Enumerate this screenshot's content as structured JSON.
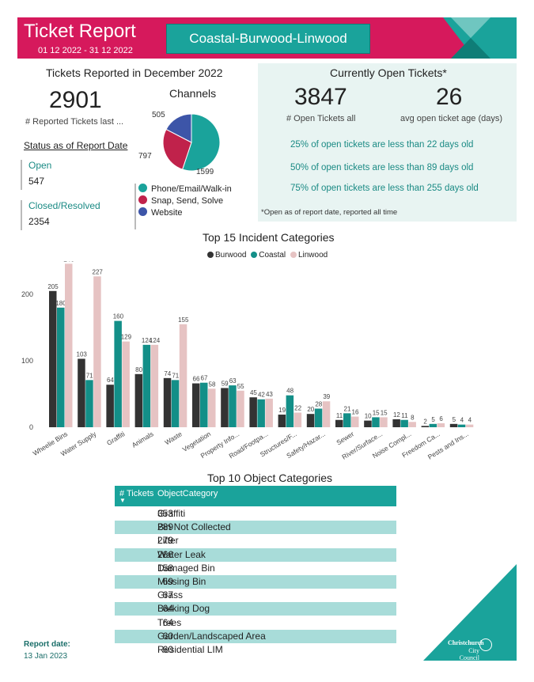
{
  "header": {
    "title": "Ticket Report",
    "dates": "01 12 2022 - 31 12 2022",
    "ward": "Coastal-Burwood-Linwood"
  },
  "reported": {
    "heading": "Tickets Reported in December 2022",
    "count": "2901",
    "count_label": "# Reported Tickets last ...",
    "status_heading": "Status as of Report Date",
    "open_label": "Open",
    "open_value": "547",
    "closed_label": "Closed/Resolved",
    "closed_value": "2354"
  },
  "channels": {
    "title": "Channels",
    "slices": [
      {
        "name": "Phone/Email/Walk-in",
        "value": 1599,
        "label": "1599",
        "color": "#1aa39b"
      },
      {
        "name": "Snap, Send, Solve",
        "value": 797,
        "label": "797",
        "color": "#c0224b"
      },
      {
        "name": "Website",
        "value": 505,
        "label": "505",
        "color": "#3d55a8"
      }
    ]
  },
  "open_tickets": {
    "heading": "Currently Open Tickets*",
    "count": "3847",
    "count_label": "# Open Tickets all",
    "age": "26",
    "age_label": "avg open ticket age (days)",
    "p25": "25% of open tickets are less than 22 days old",
    "p50": "50% of open tickets are less than 89 days old",
    "p75": "75% of open tickets are less than 255 days old",
    "footnote": "*Open as of report date, reported all time"
  },
  "chart_data": {
    "type": "bar",
    "title": "Top 15 Incident Categories",
    "categories": [
      "Wheelie Bins",
      "Water Supply",
      "Graffiti",
      "Animals",
      "Waste",
      "Vegetation",
      "Property Info...",
      "Road/Footpa...",
      "Structures/F...",
      "Safety/Hazar...",
      "Sewer",
      "River/Surface...",
      "Noise Compl...",
      "Freedom Ca...",
      "Pests and Ins..."
    ],
    "series": [
      {
        "name": "Burwood",
        "color": "#333333",
        "values": [
          205,
          103,
          64,
          80,
          74,
          66,
          59,
          45,
          19,
          20,
          11,
          10,
          12,
          2,
          5
        ]
      },
      {
        "name": "Coastal",
        "color": "#138f88",
        "values": [
          180,
          71,
          160,
          124,
          71,
          67,
          63,
          42,
          48,
          28,
          21,
          15,
          11,
          5,
          4
        ]
      },
      {
        "name": "Linwood",
        "color": "#e6c3c3",
        "values": [
          246,
          227,
          129,
          124,
          155,
          58,
          55,
          43,
          22,
          39,
          16,
          15,
          8,
          6,
          4
        ]
      }
    ],
    "yticks": [
      0,
      100,
      200
    ],
    "ylim": [
      0,
      250
    ],
    "legend": "top",
    "grid": false
  },
  "object_table": {
    "title": "Top 10 Object Categories",
    "col_count": "# Tickets",
    "col_cat": "ObjectCategory",
    "sort_glyph": "▼",
    "rows": [
      {
        "count": "353",
        "cat": "Graffiti"
      },
      {
        "count": "289",
        "cat": "Bin Not Collected"
      },
      {
        "count": "279",
        "cat": "Litter"
      },
      {
        "count": "266",
        "cat": "Water Leak"
      },
      {
        "count": "158",
        "cat": "Damaged Bin"
      },
      {
        "count": "69",
        "cat": "Missing Bin"
      },
      {
        "count": "67",
        "cat": "Grass"
      },
      {
        "count": "64",
        "cat": "Barking Dog"
      },
      {
        "count": "64",
        "cat": "Trees"
      },
      {
        "count": "60",
        "cat": "Garden/Landscaped Area"
      },
      {
        "count": "60",
        "cat": "Residential LIM"
      }
    ]
  },
  "footer": {
    "report_date_label": "Report date:",
    "report_date": "13 Jan 2023",
    "logo_line1": "Christchurch",
    "logo_line2": "City Council"
  }
}
